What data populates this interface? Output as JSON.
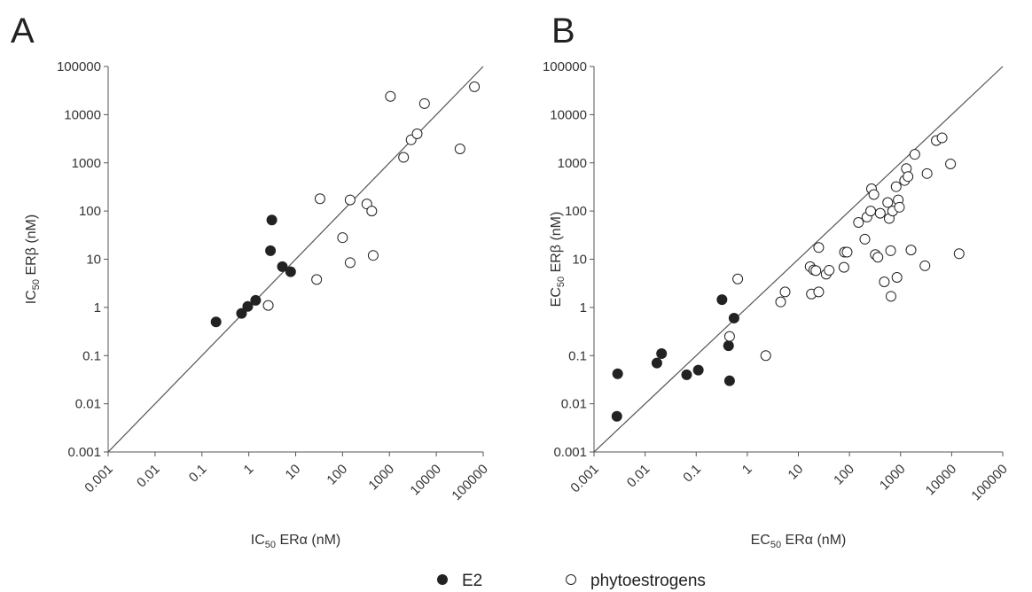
{
  "figure": {
    "legend": [
      {
        "label": "E2",
        "marker": "filled-circle"
      },
      {
        "label": "phytoestrogens",
        "marker": "open-circle"
      }
    ],
    "colors": {
      "ink": "#222222",
      "axis": "#555555",
      "identity_line": "#555555",
      "open_fill": "#ffffff"
    }
  },
  "chart_data": [
    {
      "panel": "A",
      "type": "scatter",
      "x_scale": "log",
      "y_scale": "log",
      "xlim": [
        0.001,
        100000
      ],
      "ylim": [
        0.001,
        100000
      ],
      "x_ticks": [
        "0.001",
        "0.01",
        "0.1",
        "1",
        "10",
        "100",
        "1000",
        "10000",
        "100000"
      ],
      "y_ticks": [
        "0.001",
        "0.01",
        "0.1",
        "1",
        "10",
        "100",
        "1000",
        "10000",
        "100000"
      ],
      "xlabel": {
        "pre": "IC",
        "sub": "50",
        "post": " ERα (nM)"
      },
      "ylabel": {
        "pre": "IC",
        "sub": "50",
        "post": " ERβ (nM)"
      },
      "identity_line": true,
      "grid": false,
      "series": [
        {
          "name": "E2",
          "filled": true,
          "points": [
            [
              0.2,
              0.5
            ],
            [
              0.7,
              0.75
            ],
            [
              0.95,
              1.05
            ],
            [
              1.4,
              1.4
            ],
            [
              2.9,
              15
            ],
            [
              3.1,
              65
            ],
            [
              5.2,
              7
            ],
            [
              7.8,
              5.5
            ]
          ]
        },
        {
          "name": "phytoestrogens",
          "filled": false,
          "points": [
            [
              2.6,
              1.1
            ],
            [
              28,
              3.8
            ],
            [
              33,
              180
            ],
            [
              100,
              28
            ],
            [
              145,
              8.5
            ],
            [
              145,
              170
            ],
            [
              330,
              140
            ],
            [
              420,
              100
            ],
            [
              450,
              12
            ],
            [
              1050,
              24000
            ],
            [
              2000,
              1300
            ],
            [
              2900,
              3000
            ],
            [
              3900,
              4000
            ],
            [
              5600,
              17000
            ],
            [
              32000,
              1950
            ],
            [
              65000,
              38000
            ]
          ]
        }
      ]
    },
    {
      "panel": "B",
      "type": "scatter",
      "x_scale": "log",
      "y_scale": "log",
      "xlim": [
        0.001,
        100000
      ],
      "ylim": [
        0.001,
        100000
      ],
      "x_ticks": [
        "0.001",
        "0.01",
        "0.1",
        "1",
        "10",
        "100",
        "1000",
        "10000",
        "100000"
      ],
      "y_ticks": [
        "0.001",
        "0.01",
        "0.1",
        "1",
        "10",
        "100",
        "1000",
        "10000",
        "100000"
      ],
      "xlabel": {
        "pre": "EC",
        "sub": "50",
        "post": " ERα (nM)"
      },
      "ylabel": {
        "pre": "EC",
        "sub": "50",
        "post": " ERβ (nM)"
      },
      "identity_line": true,
      "grid": false,
      "series": [
        {
          "name": "E2",
          "filled": true,
          "points": [
            [
              0.0028,
              0.0055
            ],
            [
              0.0029,
              0.042
            ],
            [
              0.017,
              0.07
            ],
            [
              0.021,
              0.11
            ],
            [
              0.065,
              0.04
            ],
            [
              0.11,
              0.05
            ],
            [
              0.32,
              1.45
            ],
            [
              0.43,
              0.16
            ],
            [
              0.45,
              0.03
            ],
            [
              0.55,
              0.6
            ]
          ]
        },
        {
          "name": "phytoestrogens",
          "filled": false,
          "points": [
            [
              0.45,
              0.25
            ],
            [
              0.65,
              3.9
            ],
            [
              2.3,
              0.1
            ],
            [
              4.5,
              1.3
            ],
            [
              5.5,
              2.1
            ],
            [
              17,
              7
            ],
            [
              18,
              1.9
            ],
            [
              20,
              6
            ],
            [
              22,
              5.8
            ],
            [
              25,
              2.1
            ],
            [
              25,
              17.5
            ],
            [
              35,
              4.9
            ],
            [
              40,
              5.9
            ],
            [
              78,
              6.8
            ],
            [
              80,
              14
            ],
            [
              90,
              14
            ],
            [
              150,
              58
            ],
            [
              200,
              26
            ],
            [
              220,
              75
            ],
            [
              260,
              100
            ],
            [
              270,
              290
            ],
            [
              300,
              220
            ],
            [
              320,
              12.5
            ],
            [
              360,
              11
            ],
            [
              400,
              90
            ],
            [
              480,
              3.4
            ],
            [
              560,
              150
            ],
            [
              600,
              70
            ],
            [
              640,
              15
            ],
            [
              650,
              1.7
            ],
            [
              700,
              100
            ],
            [
              820,
              320
            ],
            [
              850,
              4.2
            ],
            [
              900,
              170
            ],
            [
              950,
              120
            ],
            [
              1200,
              430
            ],
            [
              1300,
              760
            ],
            [
              1400,
              520
            ],
            [
              1600,
              15.5
            ],
            [
              1900,
              1500
            ],
            [
              3000,
              7.3
            ],
            [
              3300,
              600
            ],
            [
              5000,
              2900
            ],
            [
              6500,
              3300
            ],
            [
              9500,
              950
            ],
            [
              14000,
              13
            ]
          ]
        }
      ]
    }
  ]
}
